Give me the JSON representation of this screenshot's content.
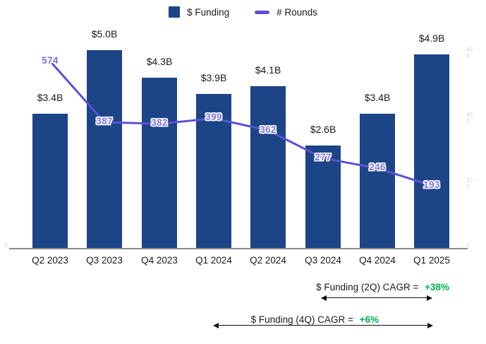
{
  "chart_data": {
    "type": "bar",
    "combo": "bar+line",
    "title": "",
    "categories": [
      "Q2 2023",
      "Q3 2023",
      "Q4 2023",
      "Q1 2024",
      "Q2 2024",
      "Q3 2024",
      "Q4 2024",
      "Q1 2025"
    ],
    "series": [
      {
        "name": "$ Funding",
        "type": "bar",
        "axis": "left",
        "unit": "$B",
        "values": [
          3.4,
          5.0,
          4.3,
          3.9,
          4.1,
          2.6,
          3.4,
          4.9
        ],
        "labels": [
          "$3.4B",
          "$5.0B",
          "$4.3B",
          "$3.9B",
          "$4.1B",
          "$2.6B",
          "$3.4B",
          "$4.9B"
        ],
        "color": "#1c4587"
      },
      {
        "name": "# Rounds",
        "type": "line",
        "axis": "right",
        "values": [
          574,
          387,
          382,
          399,
          362,
          277,
          246,
          193
        ],
        "labels": [
          "574",
          "387",
          "382",
          "399",
          "362",
          "277",
          "246",
          "193"
        ],
        "color": "#5b51d9",
        "label_color": "#7b74e8"
      }
    ],
    "right_axis_ticks": [
      "600",
      "400",
      "200",
      "0"
    ],
    "right_axis_tick_values": [
      600,
      400,
      200,
      0
    ],
    "left_axis_tick": "0",
    "ylim_left": [
      0,
      5.36
    ],
    "ylim_right": [
      0,
      650
    ],
    "grid": false,
    "legend_position": "top"
  },
  "legend": {
    "funding_label": "$ Funding",
    "rounds_label": "# Rounds"
  },
  "annotations": {
    "cagr_2q": {
      "text": "$ Funding (2Q) CAGR =",
      "value": "+38%"
    },
    "cagr_4q": {
      "text": "$ Funding (4Q) CAGR =",
      "value": "+6%"
    }
  },
  "colors": {
    "bar": "#1c4587",
    "line": "#5b51d9",
    "line_label": "#7b74e8",
    "positive": "#00b050",
    "axis_line": "#8a8a8a",
    "faint_tick": "#d4d4d4",
    "text": "#1a1a1a"
  }
}
